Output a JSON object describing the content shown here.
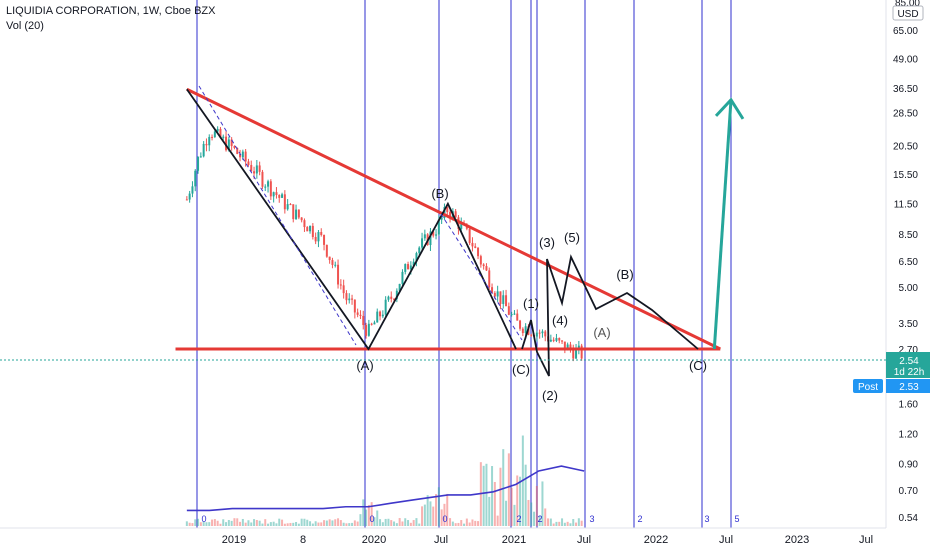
{
  "header": {
    "title": "LIQUIDIA CORPORATION, 1W, Cboe BZX",
    "volume_label": "Vol (20)"
  },
  "price_axis": {
    "currency": "USD",
    "top_partial": "85.00",
    "ticks": [
      "65.00",
      "49.00",
      "36.50",
      "28.50",
      "20.50",
      "15.50",
      "11.50",
      "8.50",
      "6.50",
      "5.00",
      "3.50",
      "2.70",
      "1.60",
      "1.20",
      "0.90",
      "0.70",
      "0.54"
    ]
  },
  "price_badge": {
    "price": "2.54",
    "countdown": "1d 22h"
  },
  "post_badge": {
    "label": "Post",
    "price": "2.53"
  },
  "time_axis": [
    "2019",
    "8",
    "2020",
    "Jul",
    "2021",
    "Jul",
    "2022",
    "Jul",
    "2023",
    "Jul"
  ],
  "wave_labels": [
    "(A)",
    "(B)",
    "(C)",
    "(1)",
    "(2)",
    "(3)",
    "(4)",
    "(5)",
    "(B)",
    "(A)",
    "(C)"
  ],
  "cycle_marks": [
    "0",
    "0",
    "0",
    "2",
    "2",
    "3",
    "2",
    "3",
    "5"
  ],
  "colors": {
    "trend": "#e53935",
    "wave": "#131722",
    "projection": "#26a69a",
    "vline": "#2f2fcf",
    "up_candle": "#26a69a",
    "down_candle": "#ef5350",
    "volume_ma": "#3f37c9",
    "price_badge": "#26a69a",
    "post_badge": "#2196f3"
  },
  "chart_data": {
    "type": "line",
    "title": "LIQUIDIA CORPORATION, 1W, Cboe BZX",
    "y_scale": "log",
    "ylim": [
      0.54,
      85
    ],
    "x": [
      "2018-08",
      "2018-09",
      "2018-10",
      "2018-12",
      "2019-02",
      "2019-05",
      "2019-08",
      "2019-10",
      "2019-12",
      "2020-02",
      "2020-04",
      "2020-06",
      "2020-07",
      "2020-09",
      "2020-11",
      "2021-01",
      "2021-03",
      "2021-05",
      "2021-07"
    ],
    "series": [
      {
        "name": "",
        "values": [
          12.0,
          18.0,
          24.0,
          20.0,
          16.0,
          11.0,
          8.0,
          4.5,
          3.2,
          4.5,
          7.0,
          9.0,
          11.0,
          8.0,
          5.0,
          3.5,
          3.2,
          2.8,
          2.54
        ]
      }
    ],
    "volume_ma": [
      0.54,
      0.54,
      0.54,
      0.55,
      0.55,
      0.55,
      0.55,
      0.56,
      0.56,
      0.58,
      0.6,
      0.62,
      0.63,
      0.63,
      0.65,
      0.7,
      0.8,
      0.84,
      0.8
    ],
    "annotations": {
      "trendline_upper": {
        "x": [
          "2018-08",
          "2022-07"
        ],
        "y": [
          36.0,
          2.7
        ]
      },
      "trendline_lower": {
        "x": [
          "2018-07",
          "2022-07"
        ],
        "y": [
          2.7,
          2.7
        ]
      },
      "wave_path": {
        "x": [
          "2018-08",
          "2019-12",
          "2020-07",
          "2021-01"
        ],
        "y": [
          36.0,
          2.7,
          11.5,
          2.7
        ]
      },
      "projection": {
        "x": [
          "2022-07",
          "2022-08"
        ],
        "y": [
          2.7,
          36.5
        ]
      }
    }
  }
}
